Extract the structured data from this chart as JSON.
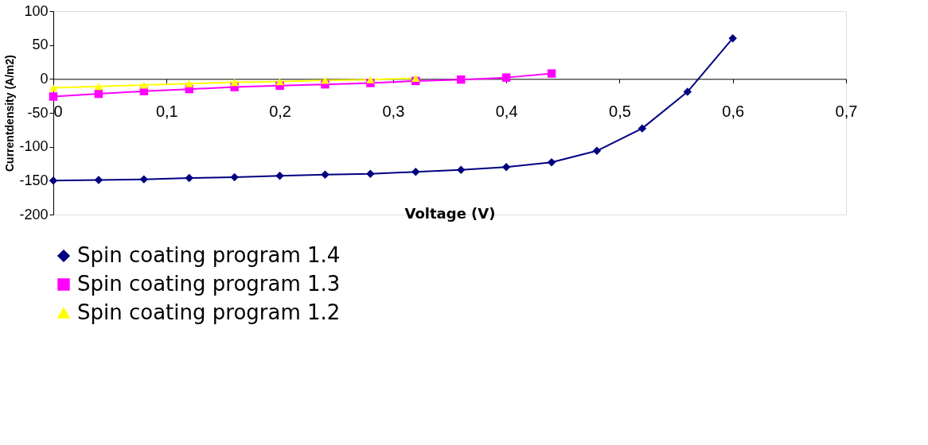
{
  "chart_data": {
    "type": "line",
    "xlabel": "Voltage (V)",
    "ylabel": "Currentdensity (A/m2)",
    "xlim": [
      0,
      0.7
    ],
    "ylim": [
      -200,
      100
    ],
    "xticks": [
      0,
      {
        "value": 0.1,
        "label": "0,1"
      },
      {
        "value": 0.2,
        "label": "0,2"
      },
      {
        "value": 0.3,
        "label": "0,3"
      },
      {
        "value": 0.4,
        "label": "0,4"
      },
      {
        "value": 0.5,
        "label": "0,5"
      },
      {
        "value": 0.6,
        "label": "0,6"
      },
      {
        "value": 0.7,
        "label": "0,7"
      }
    ],
    "yticks": [
      -200,
      -150,
      -100,
      -50,
      0,
      50,
      100
    ],
    "grid": false,
    "legend": "bottom",
    "series": [
      {
        "name": "Spin coating program 1.4",
        "color": "#000080",
        "marker": "diamond",
        "x": [
          0,
          0.04,
          0.08,
          0.12,
          0.16,
          0.2,
          0.24,
          0.28,
          0.32,
          0.36,
          0.4,
          0.44,
          0.48,
          0.52,
          0.56,
          0.6
        ],
        "values": [
          -150,
          -149,
          -148,
          -146,
          -145,
          -143,
          -141,
          -140,
          -137,
          -134,
          -130,
          -123,
          -106,
          -73,
          -19,
          60
        ]
      },
      {
        "name": "Spin coating program 1.3",
        "color": "#ff00ff",
        "marker": "square",
        "x": [
          0,
          0.04,
          0.08,
          0.12,
          0.16,
          0.2,
          0.24,
          0.28,
          0.32,
          0.36,
          0.4,
          0.44
        ],
        "values": [
          -26,
          -22,
          -18,
          -15,
          -12,
          -10,
          -8,
          -6,
          -3,
          -1,
          2,
          8
        ]
      },
      {
        "name": "Spin coating program 1.2",
        "color": "#ffff00",
        "marker": "triangle",
        "x": [
          0,
          0.04,
          0.08,
          0.12,
          0.16,
          0.2,
          0.24,
          0.28,
          0.32
        ],
        "values": [
          -13,
          -11,
          -9,
          -7,
          -5,
          -4,
          -2,
          -1,
          1
        ]
      }
    ]
  }
}
